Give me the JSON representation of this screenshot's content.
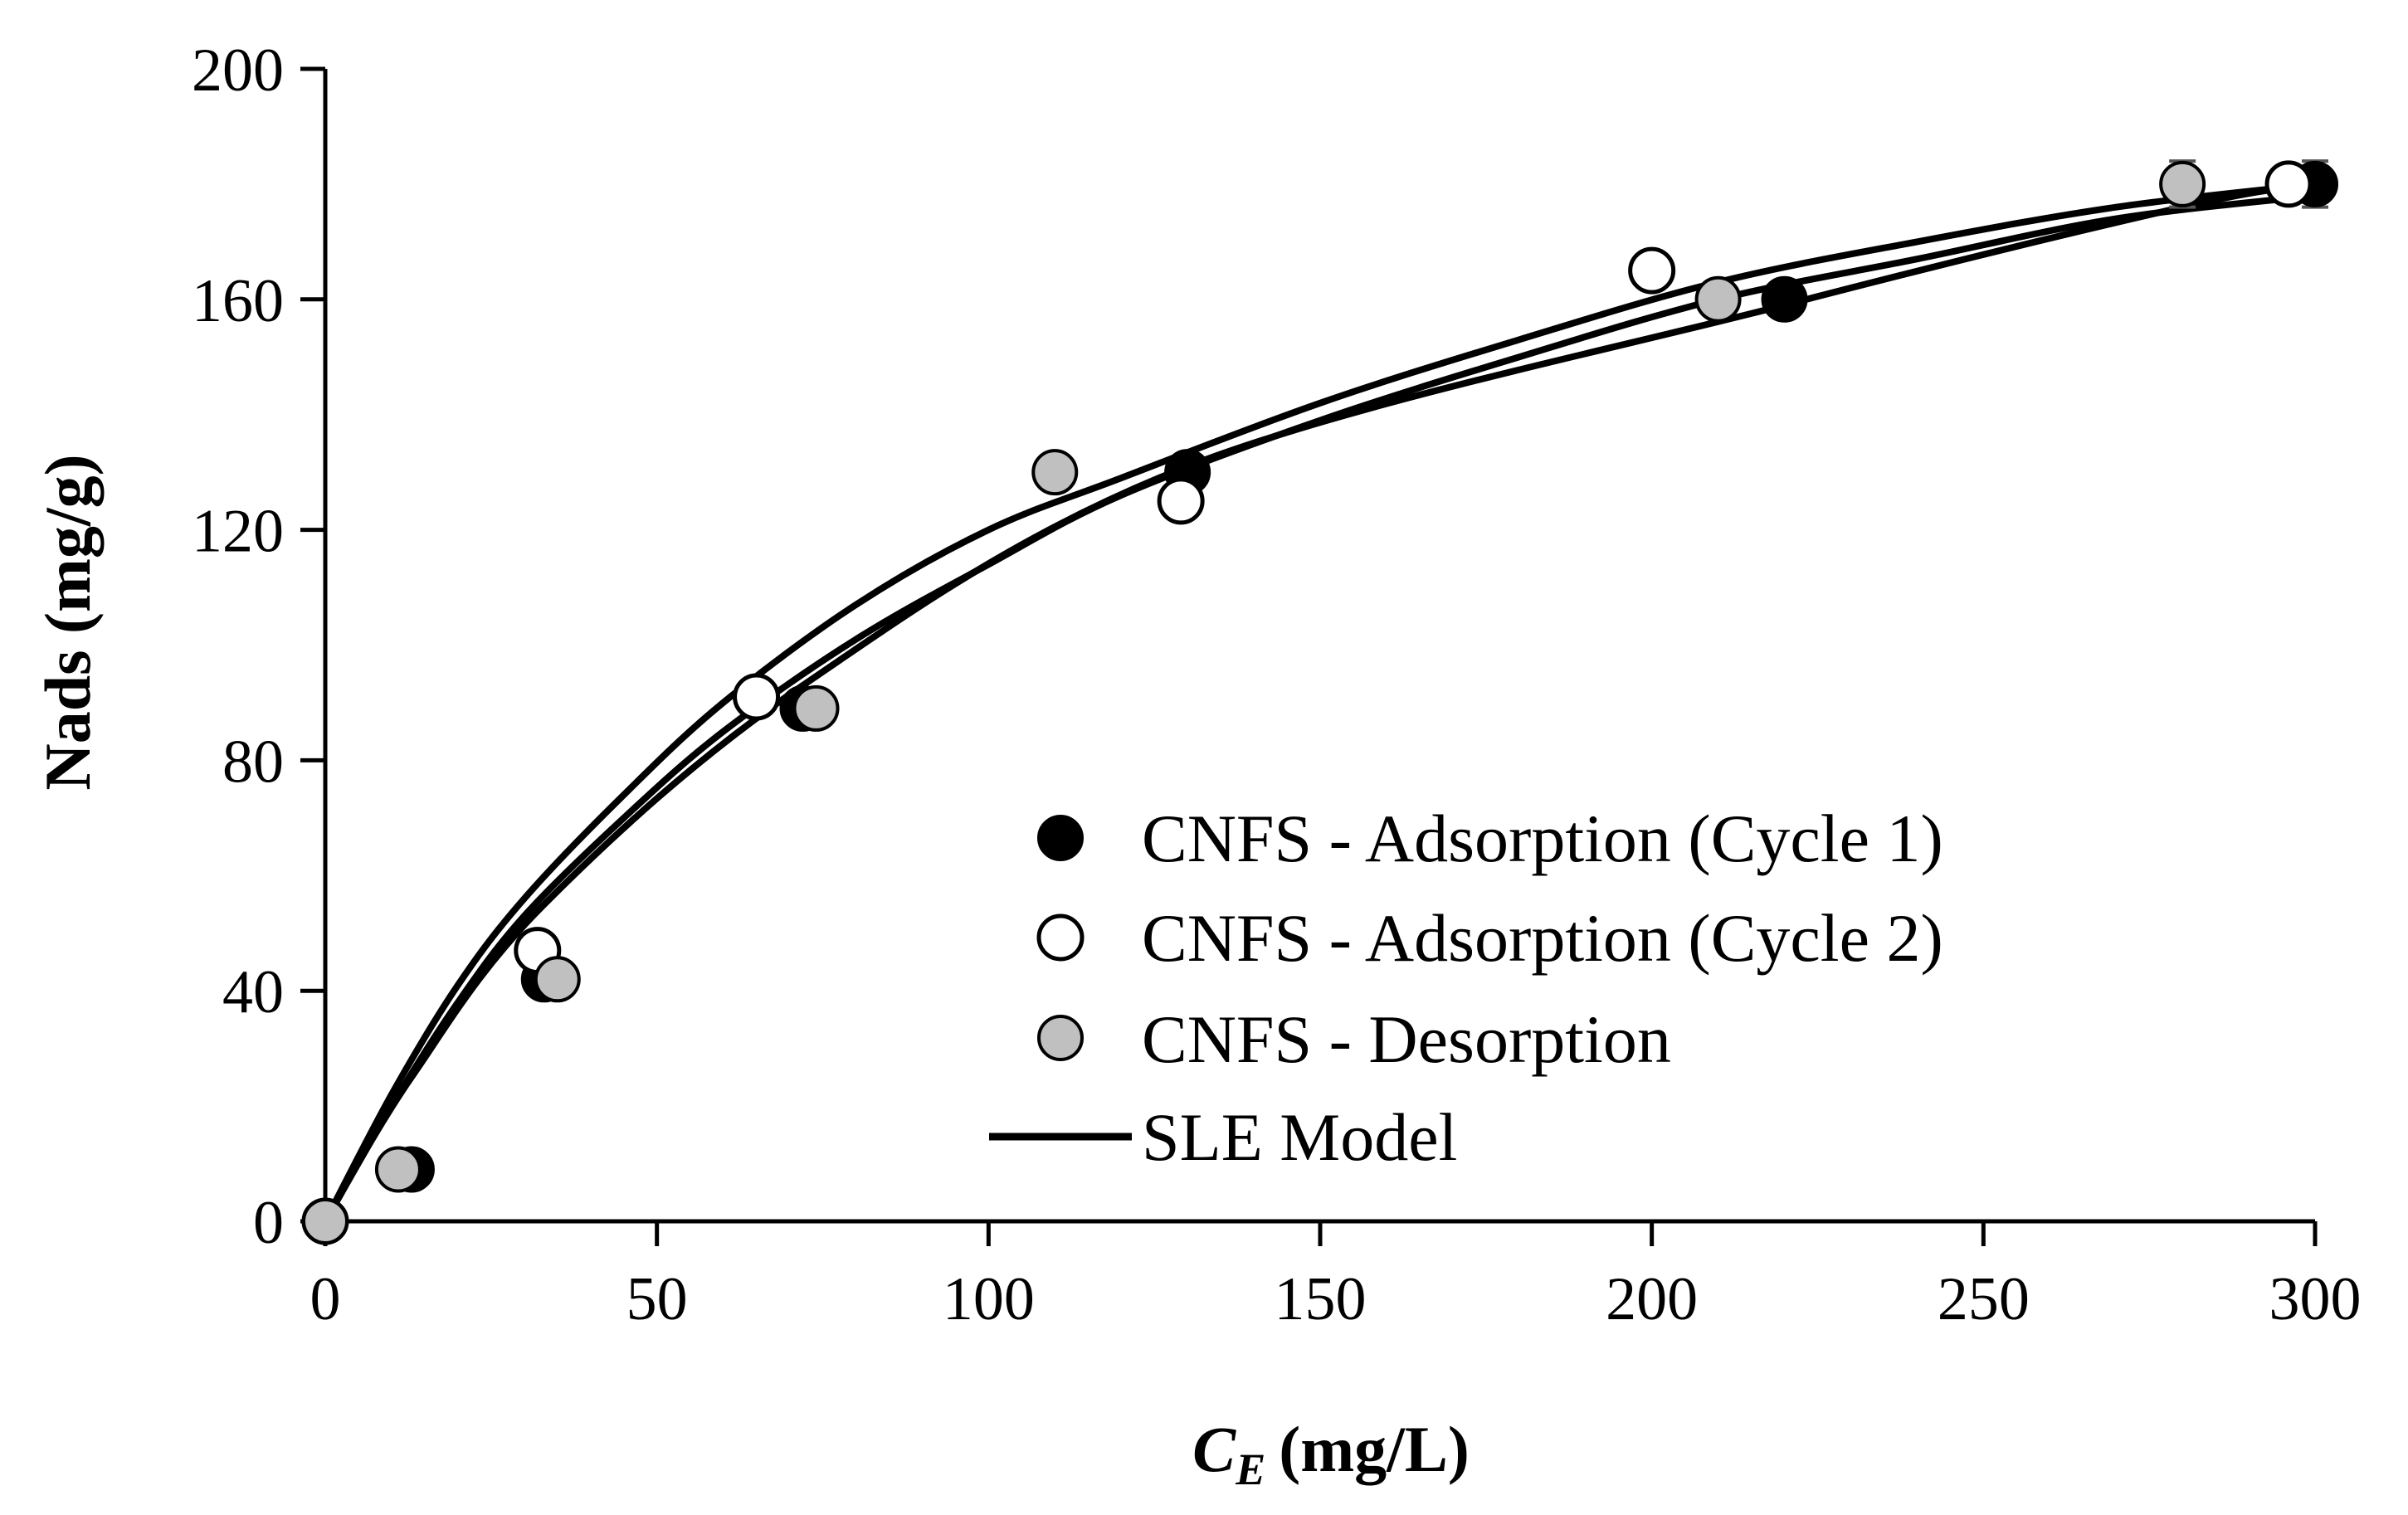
{
  "chart_data": {
    "type": "scatter",
    "title": "",
    "xlabel_main": "C",
    "xlabel_sub": "E",
    "xlabel_unit": "(mg/L)",
    "ylabel": "Nads (mg/g)",
    "xlim": [
      0,
      300
    ],
    "ylim": [
      0,
      200
    ],
    "xticks": [
      0,
      50,
      100,
      150,
      200,
      250,
      300
    ],
    "yticks": [
      0,
      40,
      80,
      120,
      160,
      200
    ],
    "grid": false,
    "legend_position": "center-right",
    "colors": {
      "cycle1_fill": "#000000",
      "cycle2_fill": "#ffffff",
      "desorption_fill": "#c0c0c0",
      "marker_edge": "#000000",
      "model_line": "#000000",
      "error_bar": "#555555"
    },
    "series": [
      {
        "name": "CNFS - Adsorption (Cycle 1)",
        "marker": "filled-black",
        "x": [
          0,
          13,
          33,
          72,
          130,
          220,
          300
        ],
        "y": [
          0,
          9,
          42,
          89,
          130,
          160,
          180
        ]
      },
      {
        "name": "CNFS - Adsorption (Cycle 2)",
        "marker": "open-white",
        "x": [
          0,
          32,
          65,
          129,
          200,
          296
        ],
        "y": [
          0,
          47,
          91,
          125,
          165,
          180
        ]
      },
      {
        "name": "CNFS - Desorption",
        "marker": "filled-gray",
        "x": [
          0,
          11,
          35,
          74,
          110,
          210,
          280
        ],
        "y": [
          0,
          9,
          42,
          89,
          130,
          160,
          180
        ]
      }
    ],
    "model": {
      "name": "SLE Model",
      "curves": [
        {
          "x": [
            0,
            10,
            20,
            30,
            45,
            60,
            80,
            100,
            120,
            150,
            180,
            210,
            240,
            270,
            300
          ],
          "y": [
            0,
            22,
            41,
            56,
            74,
            90,
            107,
            120,
            129,
            142,
            153,
            163,
            170,
            176,
            180
          ]
        },
        {
          "x": [
            0,
            10,
            20,
            30,
            45,
            60,
            80,
            100,
            120,
            150,
            180,
            210,
            240,
            270,
            300
          ],
          "y": [
            0,
            20,
            38,
            53,
            70,
            85,
            101,
            114,
            126,
            139,
            150,
            160,
            167,
            174,
            178
          ]
        },
        {
          "x": [
            0,
            13,
            33,
            72,
            130,
            220,
            280,
            300
          ],
          "y": [
            0,
            25,
            55,
            93,
            131,
            159,
            176,
            180
          ]
        }
      ]
    },
    "error_bars": [
      {
        "x": 300,
        "y": 180,
        "err": 4
      },
      {
        "x": 280,
        "y": 180,
        "err": 4
      }
    ]
  }
}
